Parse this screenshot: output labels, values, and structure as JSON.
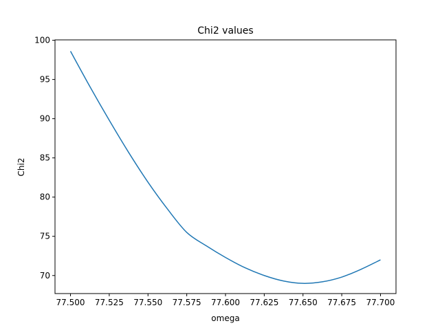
{
  "chart_data": {
    "type": "line",
    "title": "Chi2 values",
    "xlabel": "omega",
    "ylabel": "Chi2",
    "xlim": [
      77.49,
      77.71
    ],
    "ylim": [
      67.7,
      100.05
    ],
    "xticks": [
      77.5,
      77.525,
      77.55,
      77.575,
      77.6,
      77.625,
      77.65,
      77.675,
      77.7
    ],
    "xtick_labels": [
      "77.500",
      "77.525",
      "77.550",
      "77.575",
      "77.600",
      "77.625",
      "77.650",
      "77.675",
      "77.700"
    ],
    "yticks": [
      70,
      75,
      80,
      85,
      90,
      95,
      100
    ],
    "ytick_labels": [
      "70",
      "75",
      "80",
      "85",
      "90",
      "95",
      "100"
    ],
    "grid": false,
    "series": [
      {
        "color": "#1f77b4",
        "x": [
          77.5,
          77.5125,
          77.525,
          77.5375,
          77.55,
          77.5625,
          77.575,
          77.5875,
          77.6,
          77.6125,
          77.625,
          77.6375,
          77.65,
          77.6625,
          77.675,
          77.6875,
          77.7
        ],
        "y": [
          98.6,
          94.1,
          89.8,
          85.7,
          81.9,
          78.5,
          75.5,
          73.8,
          72.3,
          71.0,
          70.0,
          69.3,
          69.0,
          69.2,
          69.8,
          70.8,
          72.0
        ]
      }
    ]
  }
}
